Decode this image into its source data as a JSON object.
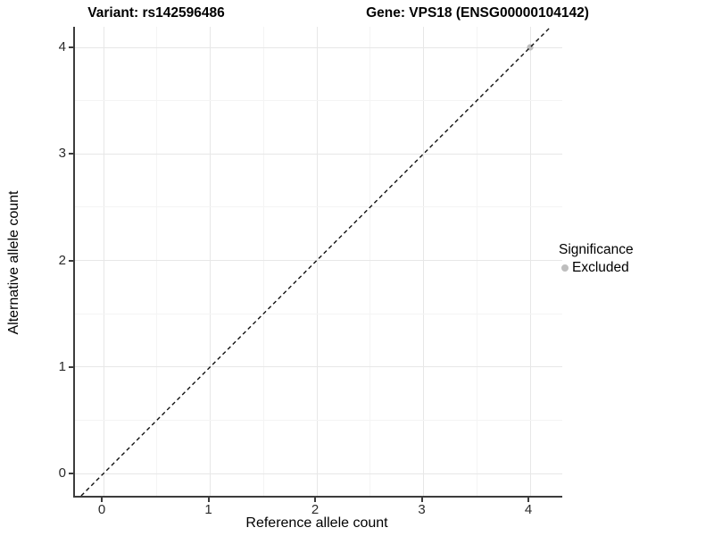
{
  "chart_data": {
    "type": "scatter",
    "titles": {
      "left": "Variant: rs142596486",
      "right": "Gene: VPS18 (ENSG00000104142)"
    },
    "xlabel": "Reference allele count",
    "ylabel": "Alternative allele count",
    "x_ticks": [
      0,
      1,
      2,
      3,
      4
    ],
    "y_ticks": [
      0,
      1,
      2,
      3,
      4
    ],
    "xlim": [
      -0.21,
      4.19
    ],
    "ylim": [
      -0.21,
      4.19
    ],
    "grid": {
      "major": true,
      "minor": true
    },
    "points": [
      {
        "x": 4,
        "y": 4,
        "significance": "Excluded",
        "color": "#bebebe"
      }
    ],
    "identity_line": {
      "slope": 1,
      "intercept": 0,
      "style": "dashed",
      "color": "#111111"
    },
    "legend": {
      "title": "Significance",
      "position": "right",
      "items": [
        {
          "label": "Excluded",
          "color": "#bebebe",
          "marker": "circle"
        }
      ]
    },
    "colors": {
      "excluded_point": "#bebebe",
      "axis_line": "#3c3c3c",
      "grid_major": "#e7e7e7",
      "grid_minor": "#f4f4f4"
    }
  }
}
